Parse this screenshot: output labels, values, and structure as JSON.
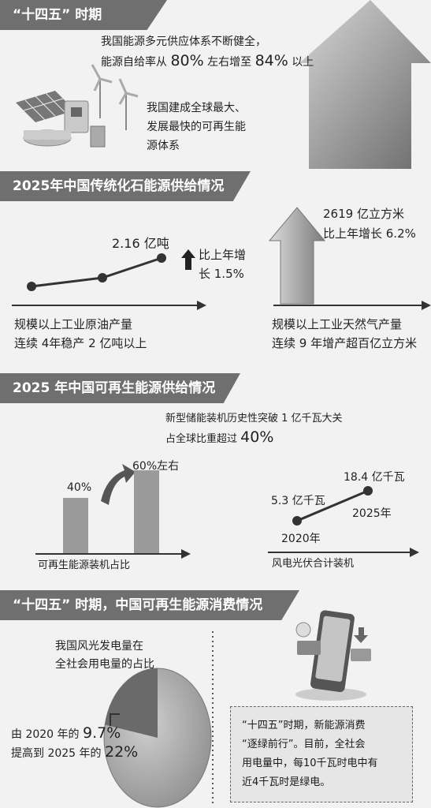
{
  "section1": {
    "title": "“十四五” 时期",
    "line1": "我国能源多元供应体系不断健全，",
    "line2_prefix": "能源自给率从 ",
    "line2_from": "80%",
    "line2_mid": " 左右增至 ",
    "line2_to": "84%",
    "line2_suffix": " 以上",
    "renew_line1": "我国建成全球最大、",
    "renew_line2": "发展最快的可再生能",
    "renew_line3": "源体系"
  },
  "section2": {
    "title": "2025年中国传统化石能源供给情况",
    "oil_value": "2.16 亿吨",
    "oil_growth_line1": "比上年增",
    "oil_growth_line2": "长 1.5%",
    "oil_label_line1": "规模以上工业原油产量",
    "oil_label_line2": "连续 4年稳产 2 亿吨以上",
    "gas_value": "2619 亿立方米",
    "gas_growth": "比上年增长 6.2%",
    "gas_label_line1": "规模以上工业天然气产量",
    "gas_label_line2": "连续 9 年增产超百亿立方米"
  },
  "section3": {
    "title": "2025 年中国可再生能源供给情况",
    "storage_line1": "新型储能装机历史性突破 1 亿千瓦大关",
    "storage_line2_prefix": "占全球比重超过 ",
    "storage_line2_value": "40%",
    "bar_label_left": "40%",
    "bar_label_right": "60%左右",
    "bar_axis_label": "可再生能源装机占比",
    "pv_value_2020": "5.3 亿千瓦",
    "pv_value_2025": "18.4 亿千瓦",
    "pv_year_2020": "2020年",
    "pv_year_2025": "2025年",
    "pv_axis_label": "风电光伏合计装机"
  },
  "section4": {
    "title": "“十四五” 时期，中国可再生能源消费情况",
    "pie_caption_line1": "我国风光发电量在",
    "pie_caption_line2": "全社会用电量的占比",
    "pie_from_prefix": "由 2020 年的 ",
    "pie_from_value": "9.7%",
    "pie_to_prefix": "提高到 2025 年的 ",
    "pie_to_value": "22%",
    "box_line1": "“十四五”时期，新能源消费",
    "box_line2": "“逐绿前行”。目前，全社会",
    "box_line3": "用电量中，每10千瓦时电中有",
    "box_line4": "近4千瓦时是绿电。"
  },
  "chart_data": [
    {
      "type": "bar",
      "categories": [
        "",
        ""
      ],
      "values": [
        40,
        60
      ],
      "xlabel": "可再生能源装机占比"
    },
    {
      "type": "line",
      "x": [
        2020,
        2025
      ],
      "values": [
        5.3,
        18.4
      ],
      "xlabel": "风电光伏合计装机"
    },
    {
      "type": "pie",
      "values": [
        22,
        78
      ],
      "labels": [
        "22%",
        ""
      ]
    }
  ],
  "colors": {
    "banner": "#6f6f6f",
    "accent": "#333333",
    "bar": "#9a9a9a"
  }
}
